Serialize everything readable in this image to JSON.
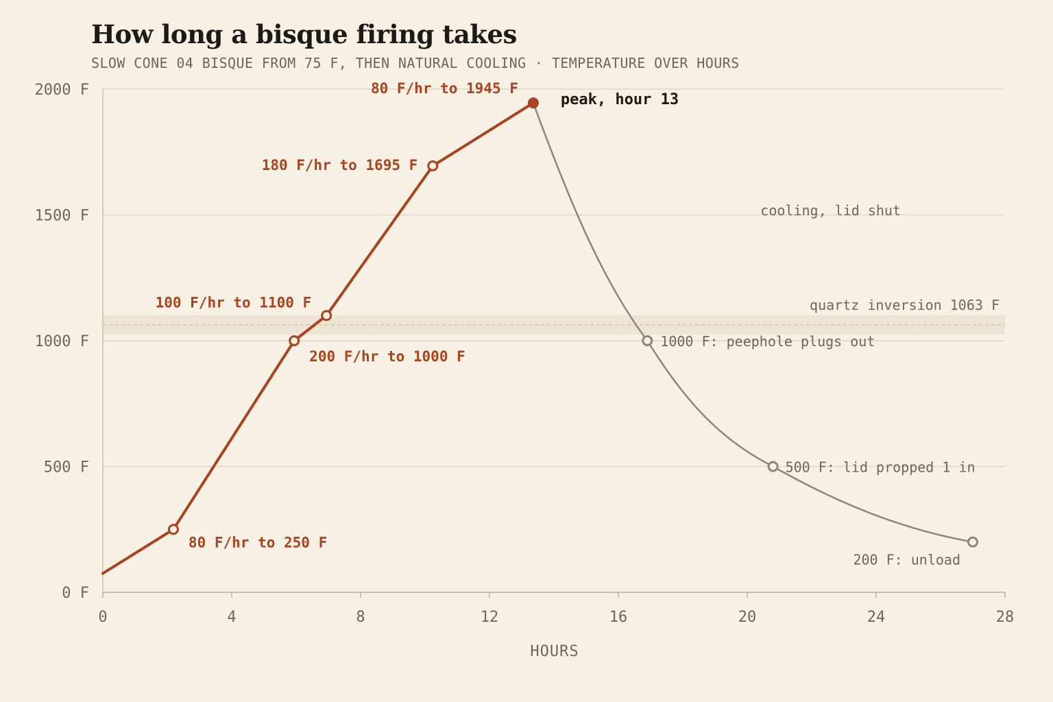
{
  "title": "How long a bisque firing takes",
  "subtitle": "SLOW CONE 04 BISQUE FROM 75 F, THEN NATURAL COOLING · TEMPERATURE OVER HOURS",
  "colors": {
    "background": "#f6f0e5",
    "heating": "#a9441f",
    "cooling": "#8a867a",
    "grid": "#ddd6c6",
    "band": "#ede4d5",
    "text": "#6e665c"
  },
  "chart_data": {
    "type": "line",
    "xlabel": "HOURS",
    "ylabel": "",
    "xlim": [
      0,
      28
    ],
    "ylim": [
      0,
      2000
    ],
    "x_ticks": [
      0,
      4,
      8,
      12,
      16,
      20,
      24,
      28
    ],
    "x_tick_labels": [
      "0",
      "4",
      "8",
      "12",
      "16",
      "20",
      "24",
      "28"
    ],
    "y_ticks": [
      0,
      500,
      1000,
      1500,
      2000
    ],
    "y_tick_labels": [
      "0 F",
      "500 F",
      "1000 F",
      "1500 F",
      "2000 F"
    ],
    "grid": "horizontal",
    "reference_band": {
      "y": 1063,
      "label": "quartz inversion 1063 F"
    },
    "heating": {
      "x": [
        0,
        2.19,
        5.94,
        6.94,
        10.24,
        13.36
      ],
      "y": [
        75,
        250,
        1000,
        1100,
        1695,
        1945
      ],
      "segment_labels": [
        {
          "text": "80 F/hr to 250 F",
          "x": 2.19,
          "y": 250
        },
        {
          "text": "200 F/hr to 1000 F",
          "x": 5.94,
          "y": 1000
        },
        {
          "text": "100 F/hr to 1100 F",
          "x": 6.94,
          "y": 1100
        },
        {
          "text": "180 F/hr to 1695 F",
          "x": 10.24,
          "y": 1695
        },
        {
          "text": "80 F/hr to 1945 F",
          "x": 13.36,
          "y": 1945
        }
      ]
    },
    "peak": {
      "x": 13.36,
      "y": 1945,
      "label": "peak, hour 13"
    },
    "cooling": {
      "label": "cooling, lid shut",
      "x": [
        13.36,
        16.9,
        20.8,
        27.0
      ],
      "y": [
        1945,
        1000,
        500,
        200
      ],
      "milestones": [
        {
          "x": 16.9,
          "y": 1000,
          "label": "1000 F: peephole plugs out"
        },
        {
          "x": 20.8,
          "y": 500,
          "label": "500 F: lid propped 1 in"
        },
        {
          "x": 27.0,
          "y": 200,
          "label": "200 F: unload"
        }
      ]
    }
  }
}
